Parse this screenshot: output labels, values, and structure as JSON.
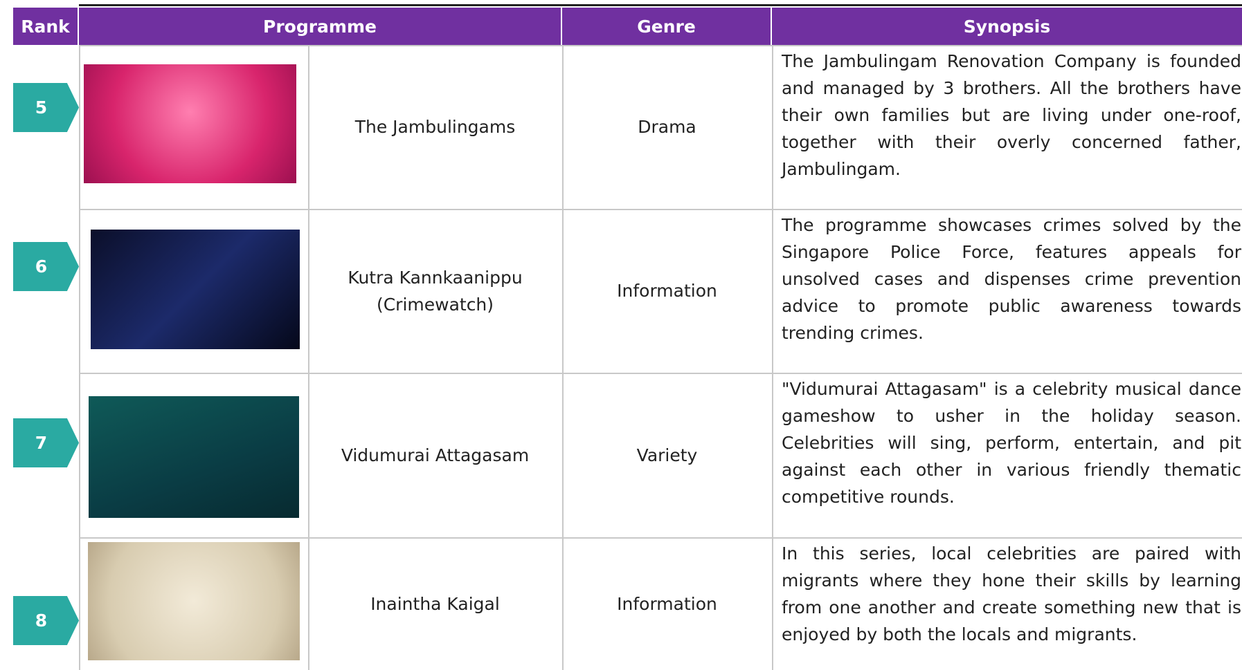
{
  "table": {
    "header": [
      "Rank",
      "Programme",
      "Genre",
      "Synopsis"
    ],
    "rows": [
      {
        "rank": "5",
        "programme": "The Jambulingams",
        "genre": "Drama",
        "synopsis": "The Jambulingam Renovation Company is founded and managed by 3 brothers. All the brothers have their own families but are living under one-roof, together with their overly concerned father, Jambulingam."
      },
      {
        "rank": "6",
        "programme": "Kutra Kannkaanippu (Crimewatch)",
        "genre": "Information",
        "synopsis": "The programme showcases crimes solved by the Singapore Police Force, features appeals for unsolved cases and dispenses crime prevention advice to promote public awareness towards trending crimes."
      },
      {
        "rank": "7",
        "programme": "Vidumurai Attagasam",
        "genre": "Variety",
        "synopsis": "\"Vidumurai Attagasam\" is a celebrity musical dance gameshow to usher in the holiday season. Celebrities will sing, perform, entertain, and pit against each other in various friendly thematic competitive rounds."
      },
      {
        "rank": "8",
        "programme": "Inaintha Kaigal",
        "genre": "Information",
        "synopsis": "In this series, local celebrities are paired with migrants where they hone their skills by learning from one another and create something new that is enjoyed by both the locals and migrants."
      }
    ]
  }
}
